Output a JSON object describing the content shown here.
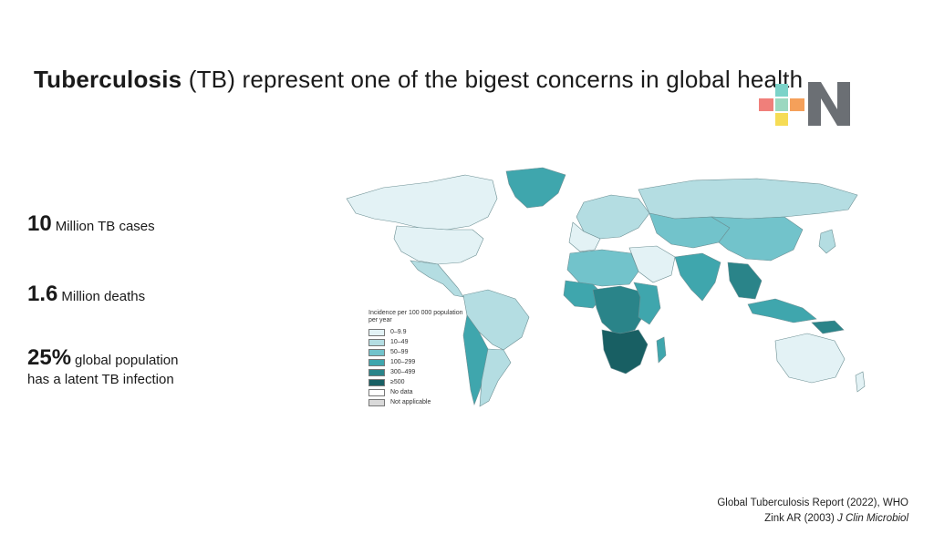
{
  "slide": {
    "title_bold": "Tuberculosis",
    "title_rest": " (TB) represent one of the bigest concerns in global health"
  },
  "stats": [
    {
      "value": "10",
      "label": "Million TB cases"
    },
    {
      "value": "1.6",
      "label": "Million deaths"
    },
    {
      "value": "25%",
      "label": "global population",
      "label2": "has a latent TB infection"
    }
  ],
  "legend": {
    "title": "Incidence per 100 000 population per year",
    "items": [
      {
        "label": "0–9.9",
        "color": "#e3f2f5"
      },
      {
        "label": "10–49",
        "color": "#b4dde2"
      },
      {
        "label": "50–99",
        "color": "#72c3cb"
      },
      {
        "label": "100–299",
        "color": "#3fa6ad"
      },
      {
        "label": "300–499",
        "color": "#2a8489"
      },
      {
        "label": "≥500",
        "color": "#185f63"
      },
      {
        "label": "No data",
        "color": "#ffffff"
      },
      {
        "label": "Not applicable",
        "color": "#d9d9d9"
      }
    ]
  },
  "references": [
    {
      "text": "Global Tuberculosis Report (2022), WHO",
      "italic": ""
    },
    {
      "text": "Zink AR (2003) ",
      "italic": "J Clin Microbiol"
    }
  ],
  "logo": {
    "letter": "N",
    "colors": [
      "#f07f7a",
      "#7bd3c9",
      "#f5a05a",
      "#f6dc55",
      "#6b6f74"
    ]
  }
}
